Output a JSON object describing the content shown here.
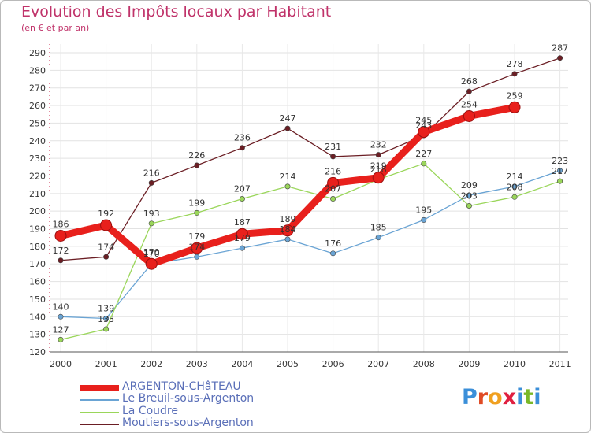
{
  "title": "Evolution des Impôts locaux par Habitant",
  "subtitle": "(en € et par an)",
  "logo": {
    "text": "Proxiti",
    "letters": [
      "P",
      "r",
      "o",
      "x",
      "i",
      "t",
      "i"
    ],
    "colors": [
      "#3b8fd9",
      "#e04b25",
      "#f0a020",
      "#e02040",
      "#3b8fd9",
      "#7ab828",
      "#3b8fd9"
    ]
  },
  "chart_data": {
    "type": "line",
    "x": [
      "2000",
      "2001",
      "2002",
      "2003",
      "2004",
      "2005",
      "2006",
      "2007",
      "2008",
      "2009",
      "2010",
      "2011"
    ],
    "ylim": [
      120,
      290
    ],
    "yticks": [
      120,
      130,
      140,
      150,
      160,
      170,
      180,
      190,
      200,
      210,
      220,
      230,
      240,
      250,
      260,
      270,
      280,
      290
    ],
    "grid": true,
    "legend_position": "bottom-left",
    "series": [
      {
        "name": "ARGENTON-CHâTEAU",
        "color": "#e8201c",
        "values": [
          186,
          192,
          170,
          179,
          187,
          189,
          216,
          219,
          245,
          254,
          259,
          null
        ],
        "labels": [
          "186",
          "192",
          "170",
          "179",
          "187",
          "189",
          "216",
          "219",
          "245",
          "254",
          "259",
          ""
        ]
      },
      {
        "name": "Le Breuil-sous-Argenton",
        "color": "#6aa4d4",
        "values": [
          140,
          139,
          170,
          174,
          179,
          184,
          176,
          185,
          195,
          209,
          214,
          223
        ],
        "labels": [
          "140",
          "139",
          "170",
          "174",
          "179",
          "184",
          "176",
          "185",
          "195",
          "209",
          "214",
          "223"
        ]
      },
      {
        "name": "La Coudre",
        "color": "#9ad65a",
        "values": [
          127,
          133,
          193,
          199,
          207,
          214,
          207,
          218,
          227,
          203,
          208,
          217
        ],
        "labels": [
          "127",
          "133",
          "193",
          "199",
          "207",
          "214",
          "207",
          "218",
          "227",
          "203",
          "208",
          "217"
        ]
      },
      {
        "name": "Moutiers-sous-Argenton",
        "color": "#6b1e24",
        "values": [
          172,
          174,
          216,
          226,
          236,
          247,
          231,
          232,
          243,
          268,
          278,
          287
        ],
        "labels": [
          "172",
          "174",
          "216",
          "226",
          "236",
          "247",
          "231",
          "232",
          "243",
          "268",
          "278",
          "287"
        ]
      }
    ]
  }
}
